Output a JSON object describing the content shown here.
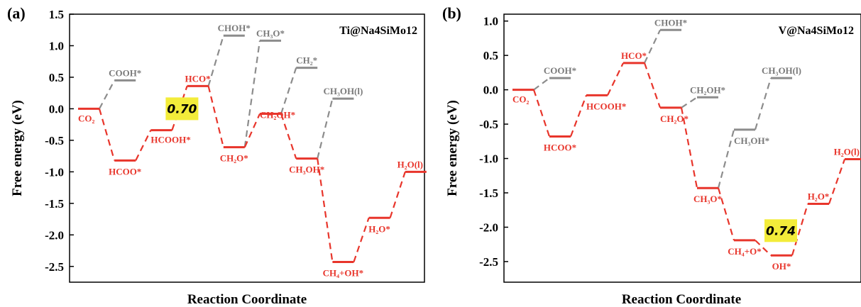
{
  "colors": {
    "main": "#e8352b",
    "side": "#8c8c8c",
    "highlight": "#f3ec3a",
    "axis": "#000000"
  },
  "chart_data": [
    {
      "type": "line",
      "panel_label": "(a)",
      "title": "Ti@Na4SiMo12",
      "xlabel": "Reaction Coordinate",
      "ylabel": "Free energy (eV)",
      "ylim": [
        -2.75,
        1.5
      ],
      "yticks": [
        "1.5",
        "1.0",
        "0.5",
        "0.0",
        "-0.5",
        "-1.0",
        "-1.5",
        "-2.0",
        "-2.5"
      ],
      "ytick_values": [
        1.5,
        1.0,
        0.5,
        0.0,
        -0.5,
        -1.0,
        -1.5,
        -2.0,
        -2.5
      ],
      "barrier": {
        "label": "0.70",
        "y": 0.0
      },
      "series": [
        {
          "role": "main",
          "steps": [
            {
              "label": "CO₂",
              "x": 0,
              "value": 0.0,
              "anchor": "start",
              "dy": 18
            },
            {
              "label": "HCOO*",
              "x": 1,
              "value": -0.82,
              "anchor": "middle",
              "dy": 20
            },
            {
              "label": "HCOOH*",
              "x": 2,
              "value": -0.34,
              "anchor": "start",
              "dy": 18
            },
            {
              "label": "HCO*",
              "x": 3,
              "value": 0.36,
              "anchor": "middle",
              "dy": -6
            },
            {
              "label": "CH₂O*",
              "x": 4,
              "value": -0.61,
              "anchor": "middle",
              "dy": 20
            },
            {
              "label": "CH₂OH*",
              "x": 5,
              "value": -0.08,
              "anchor": "start",
              "dy": 6
            },
            {
              "label": "CH₃OH*",
              "x": 6,
              "value": -0.79,
              "anchor": "middle",
              "dy": 20
            },
            {
              "label": "CH₄+OH*",
              "x": 7,
              "value": -2.43,
              "anchor": "middle",
              "dy": 20
            },
            {
              "label": "H₂O*",
              "x": 8,
              "value": -1.73,
              "anchor": "middle",
              "dy": 20
            },
            {
              "label": "H₂O(l)",
              "x": 9,
              "value": -1.0,
              "anchor": "middle",
              "dy": -6
            }
          ]
        },
        {
          "role": "side",
          "steps": [
            {
              "label": "COOH*",
              "x": 1,
              "value": 0.45,
              "from_x": 0,
              "from_value": 0.0,
              "anchor": "middle",
              "dy": -6
            },
            {
              "label": "CHOH*",
              "x": 4,
              "value": 1.16,
              "from_x": 3,
              "from_value": 0.36,
              "anchor": "middle",
              "dy": -6
            },
            {
              "label": "CH₃O*",
              "x": 5,
              "value": 1.08,
              "from_x": 4,
              "from_value": -0.61,
              "anchor": "middle",
              "dy": -6
            },
            {
              "label": "CH₂*",
              "x": 6,
              "value": 0.65,
              "from_x": 5,
              "from_value": -0.08,
              "anchor": "middle",
              "dy": -6
            },
            {
              "label": "CH₃OH(l)",
              "x": 7,
              "value": 0.16,
              "from_x": 6,
              "from_value": -0.79,
              "anchor": "middle",
              "dy": -6
            }
          ]
        }
      ]
    },
    {
      "type": "line",
      "panel_label": "(b)",
      "title": "V@Na4SiMo12",
      "xlabel": "Reaction Coordinate",
      "ylabel": "Free energy (eV)",
      "ylim": [
        -2.8,
        1.1
      ],
      "yticks": [
        "1.0",
        "0.5",
        "0.0",
        "-0.5",
        "-1.0",
        "-1.5",
        "-2.0",
        "-2.5"
      ],
      "ytick_values": [
        1.0,
        0.5,
        0.0,
        -0.5,
        -1.0,
        -1.5,
        -2.0,
        -2.5
      ],
      "barrier": {
        "label": "0.74",
        "y": -2.05
      },
      "series": [
        {
          "role": "main",
          "steps": [
            {
              "label": "CO₂",
              "x": 0,
              "value": 0.0,
              "anchor": "start",
              "dy": 18
            },
            {
              "label": "HCOO*",
              "x": 1,
              "value": -0.68,
              "anchor": "middle",
              "dy": 20
            },
            {
              "label": "HCOOH*",
              "x": 2,
              "value": -0.08,
              "anchor": "start",
              "dy": 20
            },
            {
              "label": "HCO*",
              "x": 3,
              "value": 0.39,
              "anchor": "middle",
              "dy": -6
            },
            {
              "label": "CH₂O*",
              "x": 4,
              "value": -0.26,
              "anchor": "start",
              "dy": 20
            },
            {
              "label": "CH₃O*",
              "x": 5,
              "value": -1.43,
              "anchor": "middle",
              "dy": 20
            },
            {
              "label": "CH₄+O*",
              "x": 6,
              "value": -2.19,
              "anchor": "middle",
              "dy": 20
            },
            {
              "label": "OH*",
              "x": 7,
              "value": -2.41,
              "anchor": "middle",
              "dy": 20
            },
            {
              "label": "H₂O*",
              "x": 8,
              "value": -1.66,
              "anchor": "middle",
              "dy": -6
            },
            {
              "label": "H₂O(l)",
              "x": 9,
              "value": -1.01,
              "anchor": "middle",
              "dy": -6
            }
          ]
        },
        {
          "role": "side",
          "steps": [
            {
              "label": "COOH*",
              "x": 1,
              "value": 0.17,
              "from_x": 0,
              "from_value": 0.0,
              "anchor": "middle",
              "dy": -6
            },
            {
              "label": "CHOH*",
              "x": 4,
              "value": 0.87,
              "from_x": 3,
              "from_value": 0.39,
              "anchor": "middle",
              "dy": -6
            },
            {
              "label": "CH₂OH*",
              "x": 5,
              "value": -0.11,
              "from_x": 4,
              "from_value": -0.26,
              "anchor": "middle",
              "dy": -6
            },
            {
              "label": "CH₃OH*",
              "x": 6,
              "value": -0.58,
              "from_x": 5,
              "from_value": -1.43,
              "anchor": "start",
              "dy": 20
            },
            {
              "label": "CH₃OH(l)",
              "x": 7,
              "value": 0.17,
              "from_x": 6,
              "from_value": -0.58,
              "anchor": "middle",
              "dy": -6
            }
          ]
        }
      ]
    }
  ]
}
